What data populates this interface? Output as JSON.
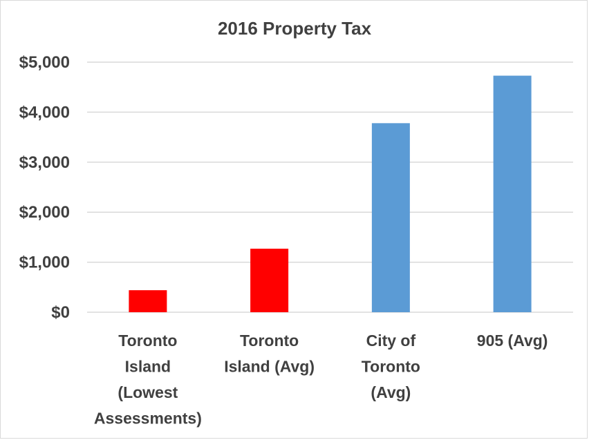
{
  "chart_data": {
    "type": "bar",
    "title": "2016 Property Tax",
    "xlabel": "",
    "ylabel": "",
    "categories": [
      [
        "Toronto",
        "Island",
        "(Lowest",
        "Assessments)"
      ],
      [
        "Toronto",
        "Island (Avg)"
      ],
      [
        "City of",
        "Toronto",
        "(Avg)"
      ],
      [
        "905 (Avg)"
      ]
    ],
    "values": [
      440,
      1270,
      3780,
      4730
    ],
    "bar_colors": [
      "#ff0000",
      "#ff0000",
      "#5b9bd5",
      "#5b9bd5"
    ],
    "ylim": [
      0,
      5000
    ],
    "y_ticks": [
      0,
      1000,
      2000,
      3000,
      4000,
      5000
    ],
    "y_tick_labels": [
      "$0",
      "$1,000",
      "$2,000",
      "$3,000",
      "$4,000",
      "$5,000"
    ],
    "grid": true,
    "legend": "none"
  }
}
